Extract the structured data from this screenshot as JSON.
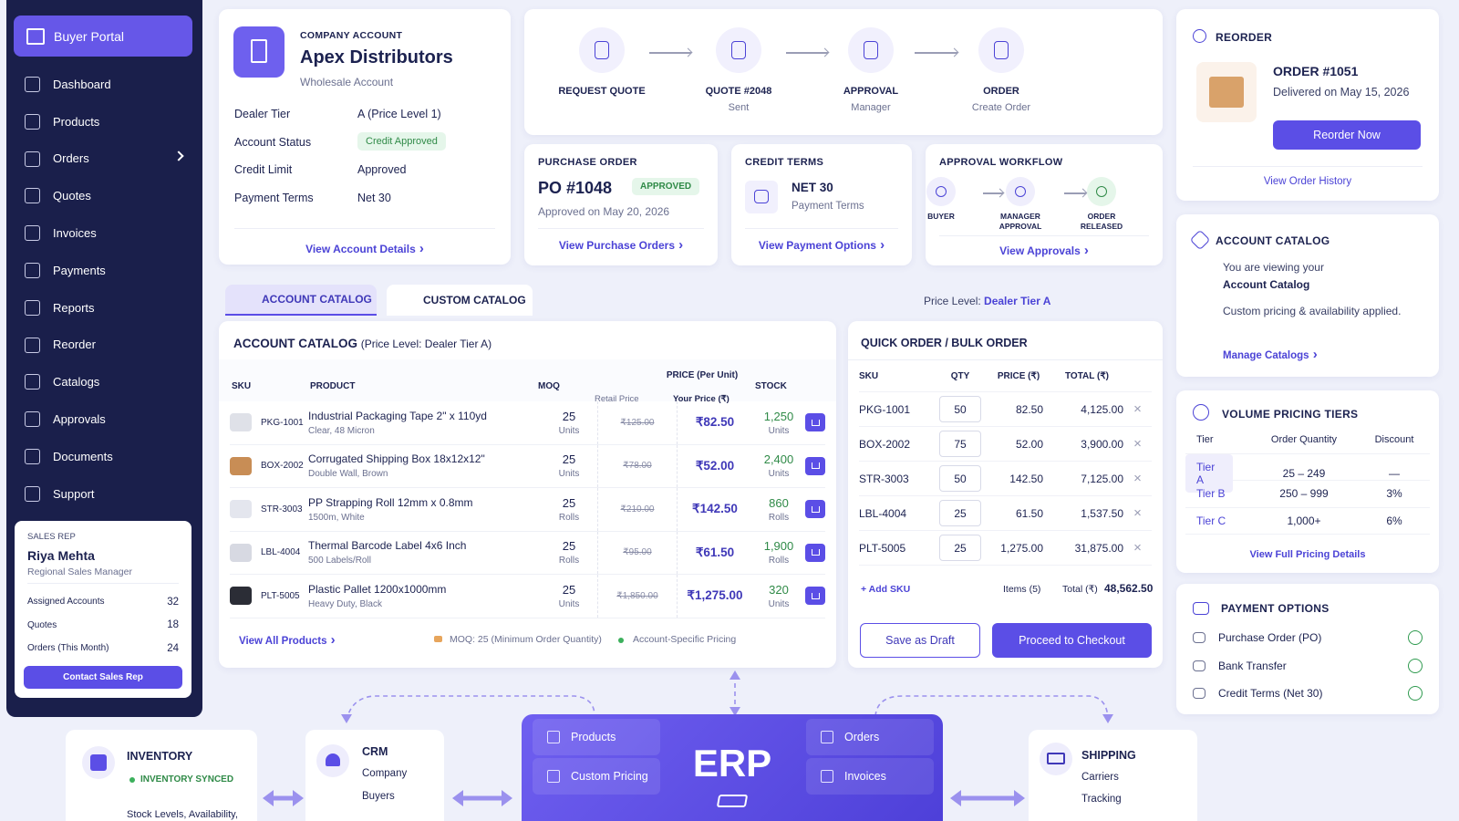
{
  "sidebar": {
    "brand": "Buyer Portal",
    "items": [
      "Dashboard",
      "Products",
      "Orders",
      "Quotes",
      "Invoices",
      "Payments",
      "Reports",
      "Reorder",
      "Catalogs",
      "Approvals",
      "Documents",
      "Support"
    ],
    "sales_rep": {
      "label": "SALES REP",
      "name": "Riya Mehta",
      "role": "Regional Sales Manager",
      "stats": [
        {
          "label": "Assigned Accounts",
          "value": 32
        },
        {
          "label": "Quotes",
          "value": 18
        },
        {
          "label": "Orders (This Month)",
          "value": 24
        }
      ],
      "button": "Contact Sales Rep"
    }
  },
  "account": {
    "label": "COMPANY ACCOUNT",
    "name": "Apex Distributors",
    "type": "Wholesale Account",
    "fields": [
      {
        "label": "Dealer Tier",
        "value": "A (Price Level 1)"
      },
      {
        "label": "Account Status",
        "value": "Credit Approved"
      },
      {
        "label": "Credit Limit",
        "value": "Approved"
      },
      {
        "label": "Payment Terms",
        "value": "Net 30"
      }
    ],
    "link": "View Account Details"
  },
  "flow": [
    {
      "title": "REQUEST QUOTE"
    },
    {
      "title": "QUOTE #2048",
      "sub": "Sent"
    },
    {
      "title": "APPROVAL",
      "sub": "Manager"
    },
    {
      "title": "ORDER",
      "sub": "Create Order"
    }
  ],
  "purchase_order": {
    "label": "PURCHASE ORDER",
    "number": "PO #1048",
    "status": "APPROVED",
    "date": "Approved on May 20, 2026",
    "link": "View Purchase Orders"
  },
  "credit_terms": {
    "label": "CREDIT TERMS",
    "value": "NET 30",
    "sub": "Payment Terms",
    "link": "View Payment Options"
  },
  "approval_workflow": {
    "label": "APPROVAL WORKFLOW",
    "steps": [
      "BUYER",
      "MANAGER APPROVAL",
      "ORDER RELEASED"
    ],
    "link": "View Approvals"
  },
  "reorder": {
    "label": "REORDER",
    "order": "ORDER #1051",
    "delivered": "Delivered on May 15, 2026",
    "button": "Reorder Now",
    "link": "View Order History"
  },
  "tabs": [
    "ACCOUNT CATALOG",
    "CUSTOM CATALOG"
  ],
  "price_level": {
    "label": "Price Level:",
    "value": "Dealer Tier A"
  },
  "catalog": {
    "title": "ACCOUNT CATALOG",
    "subtitle": "(Price Level: Dealer Tier A)",
    "columns": {
      "sku": "SKU",
      "product": "PRODUCT",
      "moq": "MOQ",
      "price": "PRICE (Per Unit)",
      "retail": "Retail Price",
      "your": "Your Price (₹)",
      "stock": "STOCK"
    },
    "rows": [
      {
        "sku": "PKG-1001",
        "name": "Industrial Packaging Tape 2\" x 110yd",
        "desc": "Clear, 48 Micron",
        "moq": 25,
        "moq_unit": "Units",
        "retail": "₹125.00",
        "price": "₹82.50",
        "stock": "1,250",
        "stock_unit": "Units"
      },
      {
        "sku": "BOX-2002",
        "name": "Corrugated Shipping Box 18x12x12\"",
        "desc": "Double Wall, Brown",
        "moq": 25,
        "moq_unit": "Units",
        "retail": "₹78.00",
        "price": "₹52.00",
        "stock": "2,400",
        "stock_unit": "Units"
      },
      {
        "sku": "STR-3003",
        "name": "PP Strapping Roll 12mm x 0.8mm",
        "desc": "1500m, White",
        "moq": 25,
        "moq_unit": "Rolls",
        "retail": "₹210.00",
        "price": "₹142.50",
        "stock": "860",
        "stock_unit": "Rolls"
      },
      {
        "sku": "LBL-4004",
        "name": "Thermal Barcode Label 4x6 Inch",
        "desc": "500 Labels/Roll",
        "moq": 25,
        "moq_unit": "Rolls",
        "retail": "₹95.00",
        "price": "₹61.50",
        "stock": "1,900",
        "stock_unit": "Rolls"
      },
      {
        "sku": "PLT-5005",
        "name": "Plastic Pallet 1200x1000mm",
        "desc": "Heavy Duty, Black",
        "moq": 25,
        "moq_unit": "Units",
        "retail": "₹1,850.00",
        "price": "₹1,275.00",
        "stock": "320",
        "stock_unit": "Units"
      }
    ],
    "footer": {
      "link": "View All Products",
      "moq_note": "MOQ: 25 (Minimum Order Quantity)",
      "pricing_note": "Account-Specific Pricing"
    }
  },
  "quick_order": {
    "title": "QUICK ORDER / BULK ORDER",
    "columns": [
      "SKU",
      "QTY",
      "PRICE (₹)",
      "TOTAL (₹)"
    ],
    "rows": [
      [
        "PKG-1001",
        50,
        "82.50",
        "4,125.00"
      ],
      [
        "BOX-2002",
        75,
        "52.00",
        "3,900.00"
      ],
      [
        "STR-3003",
        50,
        "142.50",
        "7,125.00"
      ],
      [
        "LBL-4004",
        25,
        "61.50",
        "1,537.50"
      ],
      [
        "PLT-5005",
        25,
        "1,275.00",
        "31,875.00"
      ]
    ],
    "add": "Add SKU",
    "items": "Items (5)",
    "total_label": "Total (₹)",
    "total": "48,562.50",
    "draft": "Save as Draft",
    "checkout": "Proceed to Checkout"
  },
  "side_catalog": {
    "title": "ACCOUNT CATALOG",
    "line1": "You are viewing your",
    "line1b": "Account Catalog",
    "line2": "Custom pricing & availability applied.",
    "link": "Manage Catalogs"
  },
  "volume_tiers": {
    "title": "VOLUME PRICING TIERS",
    "columns": [
      "Tier",
      "Order Quantity",
      "Discount"
    ],
    "rows": [
      [
        "Tier A",
        "25 – 249",
        "—"
      ],
      [
        "Tier B",
        "250 – 999",
        "3%"
      ],
      [
        "Tier C",
        "1,000+",
        "6%"
      ]
    ],
    "link": "View Full Pricing Details"
  },
  "payment_options": {
    "title": "PAYMENT OPTIONS",
    "items": [
      "Purchase Order (PO)",
      "Bank Transfer",
      "Credit Terms (Net 30)"
    ]
  },
  "integrations": {
    "inventory": {
      "title": "INVENTORY",
      "status": "INVENTORY SYNCED",
      "desc": "Stock Levels, Availability,"
    },
    "crm": {
      "title": "CRM",
      "items": [
        "Company",
        "Buyers"
      ]
    },
    "erp": {
      "title": "ERP",
      "left": [
        "Products",
        "Custom Pricing"
      ],
      "right": [
        "Orders",
        "Invoices"
      ]
    },
    "shipping": {
      "title": "SHIPPING",
      "items": [
        "Carriers",
        "Tracking"
      ]
    }
  }
}
